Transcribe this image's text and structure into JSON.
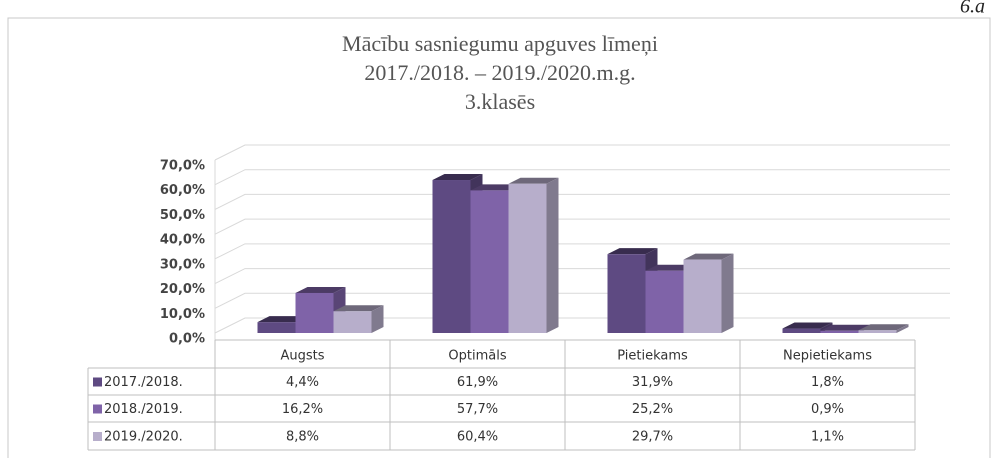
{
  "page_label": "6.a",
  "chart_data": {
    "type": "bar3d",
    "title": [
      "Mācību sasniegumu apguves līmeņi",
      "2017./2018. – 2019./2020.m.g.",
      "3.klasēs"
    ],
    "categories": [
      "Augsts",
      "Optimāls",
      "Pietiekams",
      "Nepietiekams"
    ],
    "series": [
      {
        "name": "2017./2018.",
        "color": "#5e4a82",
        "values": [
          4.4,
          61.9,
          31.9,
          1.8
        ],
        "value_labels": [
          "4,4%",
          "61,9%",
          "31,9%",
          "1,8%"
        ]
      },
      {
        "name": "2018./2019.",
        "color": "#7f63a8",
        "values": [
          16.2,
          57.7,
          25.2,
          0.9
        ],
        "value_labels": [
          "16,2%",
          "57,7%",
          "25,2%",
          "0,9%"
        ]
      },
      {
        "name": "2019./2020.",
        "color": "#b7aecb",
        "values": [
          8.8,
          60.4,
          29.7,
          1.1
        ],
        "value_labels": [
          "8,8%",
          "60,4%",
          "29,7%",
          "1,1%"
        ]
      }
    ],
    "ylim": [
      0,
      70
    ],
    "yticks": [
      {
        "value": 0,
        "label": "0,0%"
      },
      {
        "value": 10,
        "label": "10,0%"
      },
      {
        "value": 20,
        "label": "20,0%"
      },
      {
        "value": 30,
        "label": "30,0%"
      },
      {
        "value": 40,
        "label": "40,0%"
      },
      {
        "value": 50,
        "label": "50,0%"
      },
      {
        "value": 60,
        "label": "60,0%"
      },
      {
        "value": 70,
        "label": "70,0%"
      }
    ],
    "grid": true
  }
}
